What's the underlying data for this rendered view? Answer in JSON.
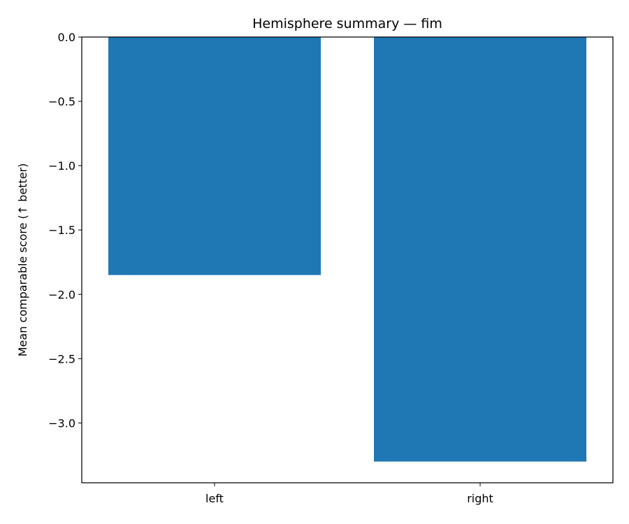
{
  "chart_data": {
    "type": "bar",
    "title": "Hemisphere summary — fim",
    "xlabel": "",
    "ylabel": "Mean comparable score (↑ better)",
    "categories": [
      "left",
      "right"
    ],
    "values": [
      -1.85,
      -3.3
    ],
    "ylim": [
      -3.465,
      0.0
    ],
    "yticks": [
      0.0,
      -0.5,
      -1.0,
      -1.5,
      -2.0,
      -2.5,
      -3.0
    ],
    "ytick_labels": [
      "0.0",
      "−0.5",
      "−1.0",
      "−1.5",
      "−2.0",
      "−2.5",
      "−3.0"
    ],
    "grid": false,
    "bar_color": "#1f77b4"
  }
}
